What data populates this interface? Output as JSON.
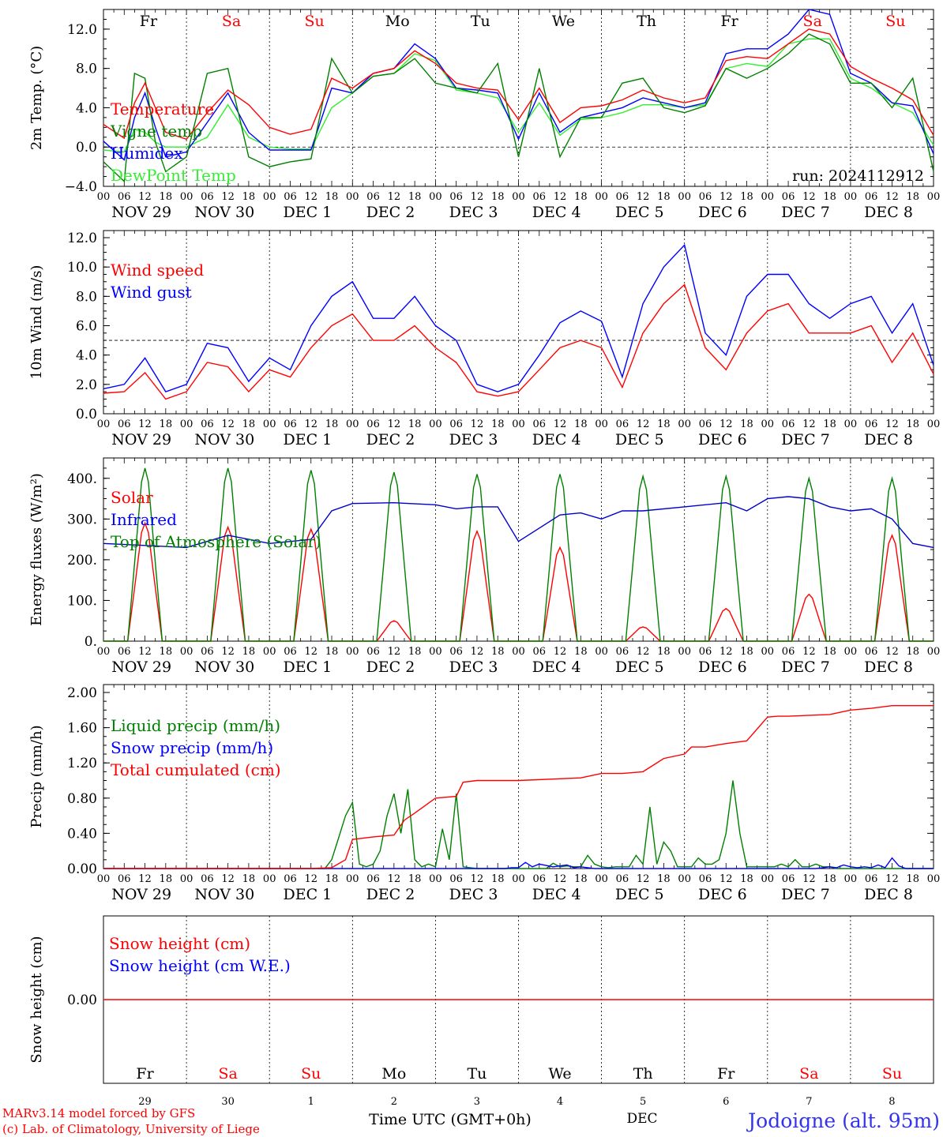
{
  "colors": {
    "red": "#ff0000",
    "green": "#008000",
    "blue": "#0000ff",
    "lightgreen": "#33ee33",
    "darkblue": "#0000cc",
    "axis": "#000000"
  },
  "days": {
    "weekday": [
      "Fr",
      "Sa",
      "Su",
      "Mo",
      "Tu",
      "We",
      "Th",
      "Fr",
      "Sa",
      "Su"
    ],
    "weekend": [
      false,
      true,
      true,
      false,
      false,
      false,
      false,
      false,
      true,
      true
    ],
    "date_labels": [
      "NOV 29",
      "NOV 30",
      "DEC 1",
      "DEC 2",
      "DEC 3",
      "DEC 4",
      "DEC 5",
      "DEC 6",
      "DEC 7",
      "DEC 8"
    ],
    "day_numbers": [
      "29",
      "30",
      "1",
      "2",
      "3",
      "4",
      "5",
      "6",
      "7",
      "8"
    ],
    "hour_ticks": [
      "00",
      "06",
      "12",
      "18"
    ],
    "end_hour": "00"
  },
  "footer": {
    "model": "MARv3.14 model forced by GFS",
    "copyright": "(c) Lab. of Climatology, University of Liege",
    "xlabel": "Time UTC (GMT+0h)",
    "month": "DEC",
    "station": "Jodoigne (alt. 95m)"
  },
  "chart_data": [
    {
      "type": "line",
      "ylabel": "2m Temp. (°C)",
      "ylim": [
        -4,
        14
      ],
      "yticks": [
        "12.0",
        "8.0",
        "4.0",
        "0.0",
        "−4.0"
      ],
      "ytick_values": [
        12,
        8,
        4,
        0,
        -4
      ],
      "ref_line": 0,
      "annotation": "run: 2024112912",
      "x_hours": [
        0,
        6,
        9,
        12,
        15,
        18,
        24,
        30,
        36,
        42,
        48,
        54,
        60,
        66,
        72,
        78,
        84,
        90,
        96,
        102,
        108,
        114,
        120,
        126,
        132,
        138,
        144,
        150,
        156,
        162,
        168,
        174,
        180,
        186,
        192,
        198,
        204,
        210,
        216,
        222,
        228,
        234,
        240
      ],
      "series": [
        {
          "name": "Temperature",
          "color": "red",
          "values": [
            2.3,
            0.9,
            4.5,
            6.5,
            4.0,
            1.5,
            0.8,
            3.5,
            5.8,
            4.3,
            2.0,
            1.3,
            1.8,
            7.0,
            6.0,
            7.5,
            8.0,
            9.8,
            8.5,
            6.5,
            6.0,
            5.8,
            2.8,
            6.0,
            2.5,
            4.0,
            4.2,
            4.8,
            5.8,
            5.0,
            4.5,
            5.0,
            8.8,
            9.2,
            9.0,
            10.5,
            12.0,
            11.5,
            8.2,
            7.0,
            6.0,
            4.8,
            1.2
          ]
        },
        {
          "name": "Vigne temp",
          "color": "green",
          "values": [
            -1.5,
            -3.5,
            7.5,
            7.0,
            0.5,
            -2.5,
            -1.0,
            7.5,
            8.0,
            -1.0,
            -2.0,
            -1.5,
            -1.2,
            9.0,
            5.5,
            7.2,
            7.5,
            9.0,
            6.5,
            6.0,
            5.5,
            8.5,
            -1.0,
            8.0,
            -1.0,
            3.0,
            3.0,
            6.5,
            7.0,
            4.0,
            3.5,
            4.2,
            8.0,
            7.0,
            8.0,
            9.5,
            11.5,
            10.5,
            6.5,
            6.5,
            4.0,
            7.0,
            -2.5
          ]
        },
        {
          "name": "Humidex",
          "color": "blue",
          "values": [
            0.6,
            -1.3,
            3.0,
            5.5,
            2.0,
            -1.0,
            -0.5,
            2.5,
            5.5,
            1.5,
            -0.3,
            -0.3,
            -0.3,
            6.0,
            5.5,
            7.5,
            8.0,
            10.5,
            9.0,
            6.0,
            5.8,
            5.5,
            0.8,
            5.5,
            1.5,
            3.0,
            3.5,
            4.0,
            5.0,
            4.5,
            4.0,
            4.5,
            9.5,
            10.0,
            10.0,
            11.5,
            14.0,
            13.5,
            7.5,
            6.5,
            4.5,
            4.2,
            -0.7
          ]
        },
        {
          "name": "DewPoint Temp",
          "color": "lightgreen",
          "values": [
            -0.3,
            -0.5,
            1.8,
            1.5,
            0.5,
            0.0,
            0.0,
            1.0,
            4.3,
            1.0,
            0.0,
            -0.2,
            -0.2,
            4.0,
            5.5,
            7.2,
            7.5,
            9.5,
            8.8,
            5.8,
            5.5,
            5.0,
            1.5,
            4.5,
            1.2,
            2.8,
            3.0,
            3.5,
            4.3,
            4.3,
            4.0,
            4.3,
            8.0,
            8.5,
            8.2,
            10.5,
            11.0,
            11.0,
            7.0,
            6.0,
            4.5,
            3.5,
            0.2
          ]
        }
      ]
    },
    {
      "type": "line",
      "ylabel": "10m Wind (m/s)",
      "ylim": [
        0,
        12
      ],
      "yticks": [
        "12.0",
        "10.0",
        "8.0",
        "6.0",
        "4.0",
        "2.0",
        "0.0"
      ],
      "ytick_values": [
        12,
        10,
        8,
        6,
        4,
        2,
        0
      ],
      "ref_line": 5,
      "x_hours": [
        0,
        6,
        12,
        18,
        24,
        30,
        36,
        42,
        48,
        54,
        60,
        66,
        72,
        78,
        84,
        90,
        96,
        102,
        108,
        114,
        120,
        126,
        132,
        138,
        144,
        150,
        156,
        162,
        168,
        174,
        180,
        186,
        192,
        198,
        204,
        210,
        216,
        222,
        228,
        234,
        240
      ],
      "series": [
        {
          "name": "Wind speed",
          "color": "red",
          "values": [
            1.4,
            1.5,
            2.8,
            1.0,
            1.5,
            3.5,
            3.2,
            1.5,
            3.0,
            2.5,
            4.5,
            6.0,
            6.8,
            5.0,
            5.0,
            6.0,
            4.5,
            3.5,
            1.5,
            1.2,
            1.5,
            3.0,
            4.5,
            5.0,
            4.5,
            1.8,
            5.5,
            7.5,
            8.8,
            4.5,
            3.0,
            5.5,
            7.0,
            7.5,
            5.5,
            5.5,
            5.5,
            6.0,
            3.5,
            5.5,
            2.7
          ]
        },
        {
          "name": "Wind gust",
          "color": "blue",
          "values": [
            1.7,
            2.0,
            3.8,
            1.5,
            2.0,
            4.8,
            4.5,
            2.2,
            3.8,
            3.0,
            6.0,
            8.0,
            9.0,
            6.5,
            6.5,
            8.0,
            6.0,
            5.0,
            2.0,
            1.5,
            2.0,
            4.0,
            6.2,
            7.0,
            6.3,
            2.5,
            7.5,
            10.0,
            11.5,
            5.5,
            4.0,
            8.0,
            9.5,
            9.5,
            7.5,
            6.5,
            7.5,
            8.0,
            5.5,
            7.5,
            3.3
          ]
        }
      ]
    },
    {
      "type": "line",
      "ylabel": "Energy fluxes (W/m²)",
      "ylim": [
        0,
        450
      ],
      "yticks": [
        "400.",
        "300.",
        "200.",
        "100.",
        "0."
      ],
      "ytick_values": [
        400,
        300,
        200,
        100,
        0
      ],
      "series_daily": [
        {
          "name": "Solar",
          "color": "red",
          "peaks": [
            290,
            280,
            275,
            50,
            270,
            230,
            35,
            80,
            115,
            260
          ]
        },
        {
          "name": "Top of Atmosphere (Solar)",
          "color": "green",
          "peaks": [
            425,
            425,
            420,
            415,
            410,
            410,
            405,
            405,
            400,
            400
          ]
        }
      ],
      "series": [
        {
          "name": "Infrared",
          "color": "darkblue",
          "x_hours": [
            0,
            12,
            24,
            36,
            42,
            48,
            60,
            66,
            72,
            84,
            96,
            102,
            108,
            114,
            120,
            132,
            138,
            144,
            150,
            156,
            168,
            180,
            186,
            192,
            198,
            204,
            210,
            216,
            222,
            228,
            234,
            240
          ],
          "values": [
            240,
            235,
            230,
            260,
            250,
            240,
            250,
            320,
            338,
            340,
            335,
            325,
            330,
            330,
            245,
            310,
            315,
            300,
            320,
            320,
            330,
            340,
            320,
            350,
            355,
            350,
            330,
            320,
            325,
            300,
            240,
            230
          ]
        }
      ]
    },
    {
      "type": "line",
      "ylabel": "Precip (mm/h)",
      "ylim": [
        0,
        2.0
      ],
      "yticks": [
        "2.00",
        "1.60",
        "1.20",
        "0.80",
        "0.40",
        "0.00"
      ],
      "ytick_values": [
        2.0,
        1.6,
        1.2,
        0.8,
        0.4,
        0.0
      ],
      "series": [
        {
          "name": "Liquid precip (mm/h)",
          "color": "green",
          "x_hours": [
            0,
            64,
            66,
            68,
            70,
            72,
            74,
            76,
            78,
            80,
            82,
            84,
            86,
            88,
            90,
            92,
            94,
            96,
            98,
            100,
            102,
            104,
            106,
            108,
            110,
            112,
            114,
            116,
            118,
            120,
            122,
            124,
            126,
            128,
            130,
            132,
            134,
            136,
            138,
            140,
            142,
            144,
            146,
            148,
            150,
            152,
            154,
            156,
            158,
            160,
            162,
            164,
            166,
            168,
            170,
            172,
            174,
            176,
            178,
            180,
            182,
            184,
            186,
            188,
            190,
            192,
            194,
            196,
            198,
            200,
            202,
            204,
            206,
            208,
            210,
            212,
            214,
            216,
            218,
            220,
            222,
            224,
            226,
            228,
            230,
            232,
            234,
            236,
            238,
            240
          ],
          "values": [
            0,
            0,
            0.1,
            0.35,
            0.6,
            0.75,
            0.05,
            0.02,
            0.05,
            0.2,
            0.6,
            0.85,
            0.4,
            0.9,
            0.1,
            0.02,
            0.05,
            0.02,
            0.45,
            0.1,
            0.85,
            0.02,
            0.01,
            0,
            0,
            0,
            0,
            0,
            0,
            0,
            0,
            0,
            0,
            0,
            0.06,
            0.02,
            0.03,
            0.02,
            0.02,
            0.15,
            0.05,
            0.02,
            0.01,
            0.02,
            0.02,
            0.02,
            0.15,
            0.05,
            0.7,
            0.05,
            0.3,
            0.2,
            0.02,
            0.02,
            0.02,
            0.12,
            0.05,
            0.05,
            0.1,
            0.4,
            1.0,
            0.4,
            0.02,
            0.02,
            0.02,
            0.02,
            0.02,
            0.05,
            0.02,
            0.1,
            0.02,
            0.02,
            0.05,
            0.02,
            0.02,
            0,
            0,
            0,
            0,
            0,
            0,
            0,
            0,
            0,
            0,
            0,
            0,
            0,
            0,
            0
          ]
        },
        {
          "name": "Snow precip (mm/h)",
          "color": "blue",
          "x_hours": [
            0,
            116,
            118,
            120,
            122,
            124,
            126,
            130,
            134,
            136,
            138,
            140,
            142,
            144,
            146,
            148,
            150,
            152,
            154,
            156,
            158,
            160,
            162,
            164,
            166,
            168,
            170,
            172,
            174,
            176,
            178,
            180,
            182,
            184,
            186,
            188,
            190,
            192,
            194,
            196,
            198,
            200,
            202,
            204,
            206,
            208,
            210,
            212,
            214,
            216,
            218,
            220,
            222,
            224,
            226,
            228,
            230,
            232,
            234,
            236,
            238,
            240
          ],
          "values": [
            0,
            0,
            0.01,
            0.01,
            0.07,
            0.02,
            0.05,
            0.02,
            0.04,
            0.01,
            0.02,
            0.01,
            0,
            0,
            0,
            0,
            0,
            0,
            0,
            0,
            0,
            0,
            0,
            0,
            0,
            0,
            0,
            0,
            0,
            0,
            0,
            0,
            0,
            0,
            0,
            0,
            0,
            0,
            0,
            0,
            0,
            0,
            0,
            0,
            0,
            0.01,
            0.02,
            0.01,
            0.04,
            0.02,
            0.01,
            0.02,
            0.01,
            0.04,
            0.01,
            0.12,
            0.03,
            0,
            0,
            0,
            0,
            0
          ]
        },
        {
          "name": "Total cumulated (cm)",
          "color": "red",
          "x_hours": [
            0,
            60,
            66,
            70,
            72,
            78,
            84,
            87,
            90,
            96,
            102,
            104,
            108,
            120,
            138,
            144,
            150,
            156,
            162,
            168,
            170,
            174,
            180,
            186,
            192,
            195,
            198,
            210,
            216,
            222,
            228,
            234,
            240
          ],
          "values": [
            0,
            0,
            0.01,
            0.1,
            0.33,
            0.36,
            0.38,
            0.55,
            0.63,
            0.8,
            0.82,
            0.98,
            1.0,
            1.0,
            1.03,
            1.08,
            1.08,
            1.1,
            1.25,
            1.3,
            1.38,
            1.38,
            1.42,
            1.45,
            1.72,
            1.73,
            1.73,
            1.75,
            1.8,
            1.82,
            1.85,
            1.85,
            1.85
          ]
        }
      ]
    },
    {
      "type": "line",
      "ylabel": "Snow height (cm)",
      "yticks": [
        "0.00"
      ],
      "ytick_values": [
        0
      ],
      "series": [
        {
          "name": "Snow height (cm)",
          "color": "red",
          "values": [
            0,
            0
          ]
        },
        {
          "name": "Snow height (cm W.E.)",
          "color": "blue",
          "values": [
            0,
            0
          ]
        }
      ]
    }
  ]
}
